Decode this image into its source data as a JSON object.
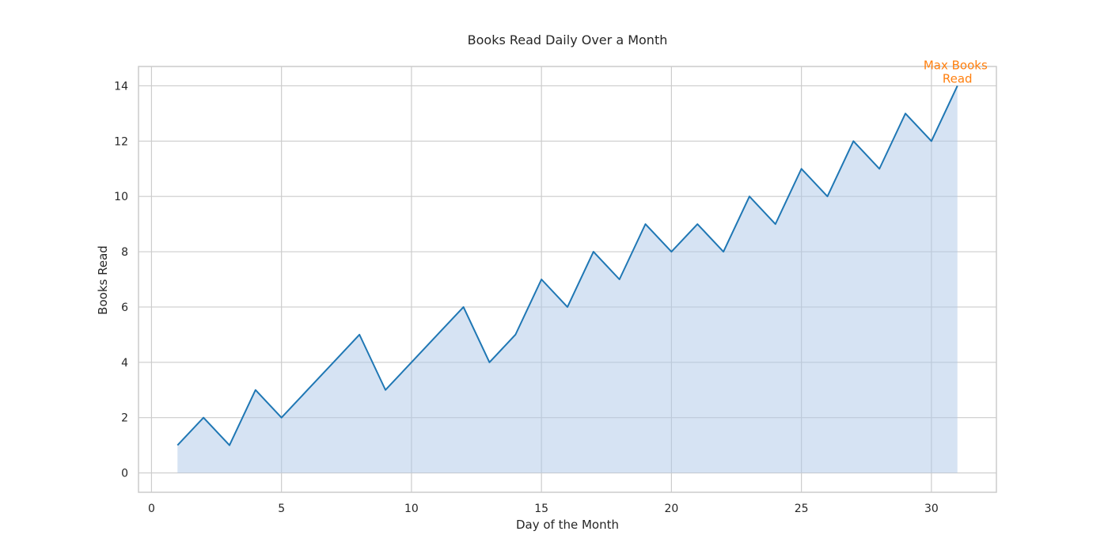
{
  "chart_data": {
    "type": "area",
    "title": "Books Read Daily Over a Month",
    "xlabel": "Day of the Month",
    "ylabel": "Books Read",
    "x": [
      1,
      2,
      3,
      4,
      5,
      6,
      7,
      8,
      9,
      10,
      11,
      12,
      13,
      14,
      15,
      16,
      17,
      18,
      19,
      20,
      21,
      22,
      23,
      24,
      25,
      26,
      27,
      28,
      29,
      30,
      31
    ],
    "series": [
      {
        "values": [
          1,
          2,
          1,
          3,
          2,
          3,
          4,
          5,
          3,
          4,
          5,
          6,
          4,
          5,
          7,
          6,
          8,
          7,
          9,
          8,
          9,
          8,
          10,
          9,
          11,
          10,
          12,
          11,
          13,
          12,
          14
        ]
      }
    ],
    "xlim": [
      -0.5,
      32.5
    ],
    "ylim": [
      -0.7,
      14.7
    ],
    "xticks": [
      0,
      5,
      10,
      15,
      20,
      25,
      30
    ],
    "yticks": [
      0,
      2,
      4,
      6,
      8,
      10,
      12,
      14
    ],
    "grid": true,
    "annotation": {
      "text_line1": "Max Books",
      "text_line2": "Read",
      "x": 31,
      "y": 14
    },
    "colors": {
      "line": "#1f77b4",
      "fill": "#aec7e8",
      "annotation": "#ff7f0e",
      "grid": "#cccccc"
    }
  }
}
